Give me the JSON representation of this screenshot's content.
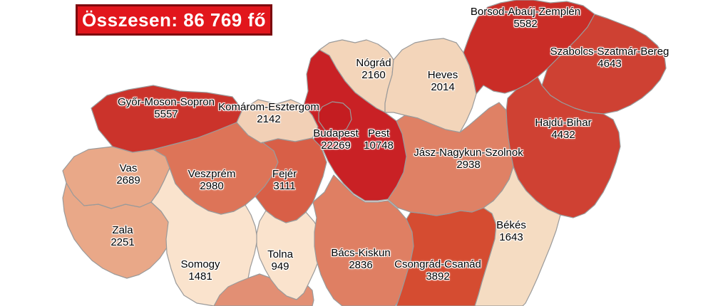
{
  "title": {
    "text": "Összesen: 86 769 fő",
    "bg": "#e2161c",
    "border": "#7d0a0e",
    "color": "#ffffff"
  },
  "map": {
    "stroke": "#9a9a9a",
    "background": "#ffffff",
    "counties": [
      {
        "id": "zala",
        "name": "Zala",
        "value": "2251",
        "color": "#e9a888"
      },
      {
        "id": "vas",
        "name": "Vas",
        "value": "2689",
        "color": "#e9a888"
      },
      {
        "id": "somogy",
        "name": "Somogy",
        "value": "1481",
        "color": "#fae3cd"
      },
      {
        "id": "baranya",
        "name": "",
        "value": "",
        "color": "#e28f74"
      },
      {
        "id": "veszprem",
        "name": "Veszprém",
        "value": "2980",
        "color": "#dd7458"
      },
      {
        "id": "tolna",
        "name": "Tolna",
        "value": "949",
        "color": "#fae3cd"
      },
      {
        "id": "gyms",
        "name": "Győr-Moson-Sopron",
        "value": "5557",
        "color": "#cb332b"
      },
      {
        "id": "komarom",
        "name": "Komárom-Esztergom",
        "value": "2142",
        "color": "#f2d0b6"
      },
      {
        "id": "fejer",
        "name": "Fejér",
        "value": "3111",
        "color": "#d85f47"
      },
      {
        "id": "bacs",
        "name": "Bács-Kiskun",
        "value": "2836",
        "color": "#df7f63"
      },
      {
        "id": "csongrad",
        "name": "Csongrád-Csanád",
        "value": "3892",
        "color": "#d54c31"
      },
      {
        "id": "bekes",
        "name": "Békés",
        "value": "1643",
        "color": "#f5dcc2"
      },
      {
        "id": "nograd",
        "name": "Nógrád",
        "value": "2160",
        "color": "#f3d5ba"
      },
      {
        "id": "heves",
        "name": "Heves",
        "value": "2014",
        "color": "#f3d5ba"
      },
      {
        "id": "jasz",
        "name": "Jász-Nagykun-Szolnok",
        "value": "2938",
        "color": "#df8165"
      },
      {
        "id": "borsod",
        "name": "Borsod-Abaúj-Zemplén",
        "value": "5582",
        "color": "#ca2d27"
      },
      {
        "id": "szabolcs",
        "name": "Szabolcs-Szatmár-Bereg",
        "value": "4643",
        "color": "#ce4133"
      },
      {
        "id": "hajdu",
        "name": "Hajdú-Bihar",
        "value": "4432",
        "color": "#cf4133"
      },
      {
        "id": "pest",
        "name": "Pest",
        "value": "10748",
        "color": "#c92125"
      },
      {
        "id": "budapest",
        "name": "Budapest",
        "value": "22269",
        "color": "#c41d21"
      }
    ]
  }
}
